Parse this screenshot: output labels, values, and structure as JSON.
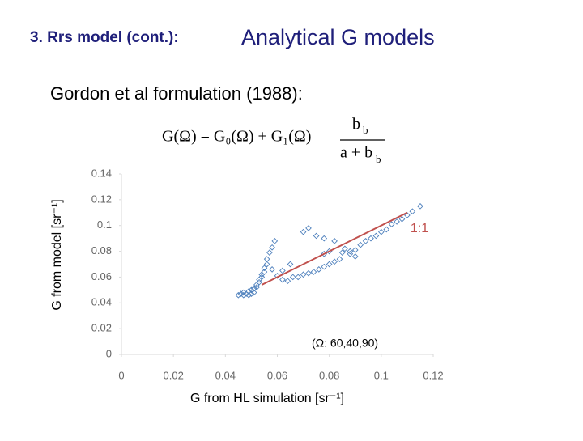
{
  "header": {
    "section": "3. Rrs model (cont.):",
    "title": "Analytical G models"
  },
  "subtitle": "Gordon et al formulation (1988):",
  "equation": {
    "lhs": "G(Ω) = G₀(Ω) + G₁(Ω)",
    "numerator": {
      "base": "b",
      "sub": "b"
    },
    "denominator": {
      "base": "a + b",
      "sub": "b"
    }
  },
  "chart_data": {
    "type": "scatter",
    "x_label": "G from HL simulation  [sr⁻¹]",
    "y_label": "G from model  [sr⁻¹]",
    "color": "#4f81bd",
    "xlim": [
      0,
      0.12
    ],
    "xticks": [
      0,
      0.02,
      0.04,
      0.06,
      0.08,
      0.1,
      0.12
    ],
    "ylim": [
      0,
      0.14
    ],
    "yticks": [
      0,
      0.02,
      0.04,
      0.06,
      0.08,
      0.1,
      0.12,
      0.14
    ],
    "x": [
      0.045,
      0.046,
      0.047,
      0.048,
      0.049,
      0.05,
      0.051,
      0.047,
      0.049,
      0.05,
      0.051,
      0.052,
      0.052,
      0.053,
      0.053,
      0.054,
      0.054,
      0.055,
      0.055,
      0.056,
      0.056,
      0.057,
      0.058,
      0.059,
      0.058,
      0.06,
      0.062,
      0.064,
      0.066,
      0.068,
      0.07,
      0.072,
      0.074,
      0.076,
      0.078,
      0.08,
      0.082,
      0.084,
      0.078,
      0.08,
      0.085,
      0.088,
      0.09,
      0.092,
      0.094,
      0.096,
      0.098,
      0.1,
      0.102,
      0.104,
      0.106,
      0.108,
      0.11,
      0.112,
      0.115,
      0.07,
      0.072,
      0.075,
      0.078,
      0.082,
      0.086,
      0.088,
      0.09,
      0.065,
      0.062
    ],
    "values": [
      0.046,
      0.047,
      0.046,
      0.047,
      0.046,
      0.047,
      0.048,
      0.048,
      0.049,
      0.05,
      0.051,
      0.052,
      0.054,
      0.056,
      0.058,
      0.06,
      0.062,
      0.064,
      0.067,
      0.07,
      0.074,
      0.079,
      0.083,
      0.088,
      0.066,
      0.061,
      0.058,
      0.057,
      0.06,
      0.06,
      0.062,
      0.063,
      0.064,
      0.066,
      0.068,
      0.07,
      0.072,
      0.074,
      0.078,
      0.08,
      0.079,
      0.08,
      0.081,
      0.085,
      0.088,
      0.09,
      0.092,
      0.095,
      0.097,
      0.101,
      0.103,
      0.105,
      0.108,
      0.111,
      0.115,
      0.095,
      0.098,
      0.092,
      0.09,
      0.088,
      0.082,
      0.078,
      0.076,
      0.07,
      0.065
    ],
    "reference_line": {
      "x": [
        0.054,
        0.11
      ],
      "values": [
        0.054,
        0.11
      ],
      "color": "#c0504d",
      "label": "1:1"
    },
    "annotation": "(Ω: 60,40,90)"
  }
}
